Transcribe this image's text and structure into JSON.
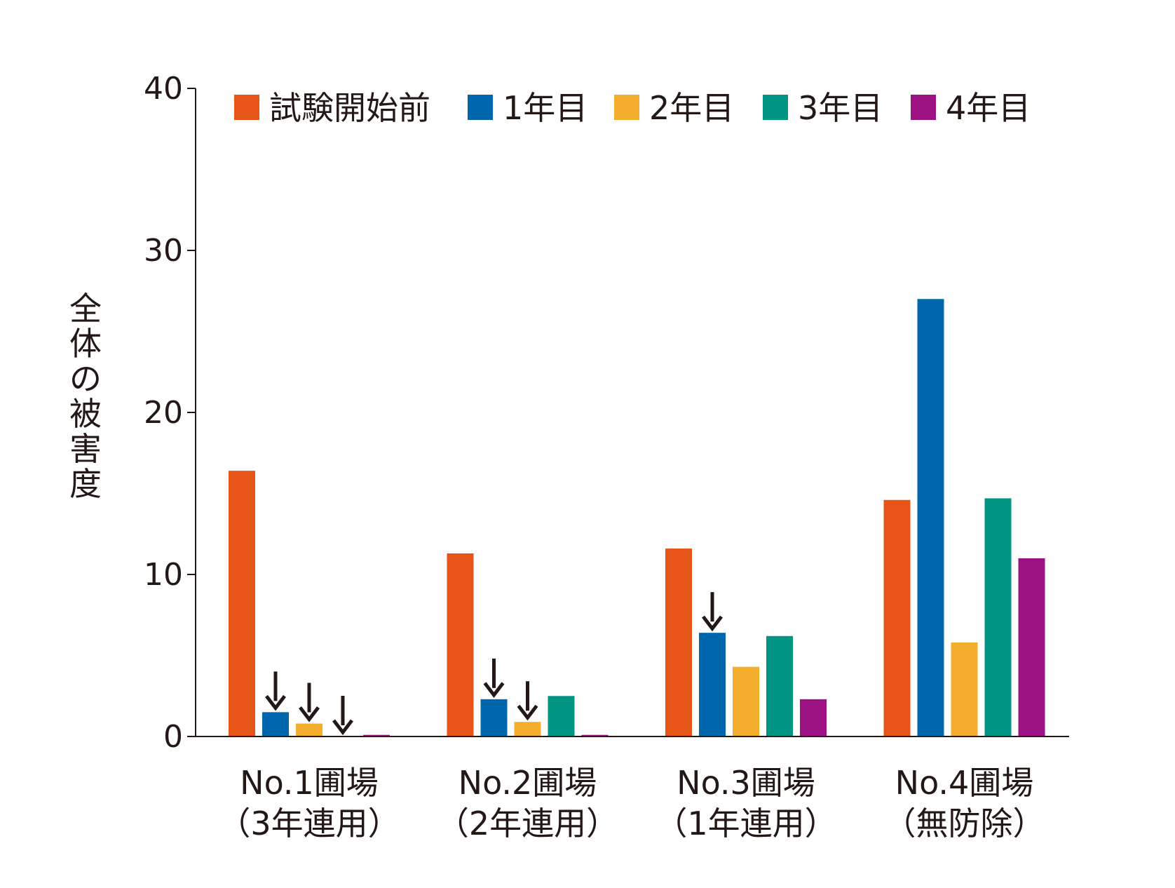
{
  "chart_data": {
    "type": "bar",
    "title": "",
    "xlabel": "",
    "ylabel": "全体の被害度",
    "ylim": [
      0,
      40
    ],
    "yticks": [
      0,
      10,
      20,
      30,
      40
    ],
    "legend_position": "top",
    "categories": [
      {
        "line1": "No.1圃場",
        "line2": "（3年連用）"
      },
      {
        "line1": "No.2圃場",
        "line2": "（2年連用）"
      },
      {
        "line1": "No.3圃場",
        "line2": "（1年連用）"
      },
      {
        "line1": "No.4圃場",
        "line2": "（無防除）"
      }
    ],
    "series": [
      {
        "name": "試験開始前",
        "color": "#E65418",
        "values": [
          16.4,
          11.3,
          11.6,
          14.6
        ]
      },
      {
        "name": "1年目",
        "color": "#0067AC",
        "values": [
          1.5,
          2.3,
          6.4,
          27.0
        ]
      },
      {
        "name": "2年目",
        "color": "#F3AE2D",
        "values": [
          0.8,
          0.9,
          4.3,
          5.8
        ]
      },
      {
        "name": "3年目",
        "color": "#009483",
        "values": [
          0.0,
          2.5,
          6.2,
          14.7
        ]
      },
      {
        "name": "4年目",
        "color": "#9C1283",
        "values": [
          0.1,
          0.1,
          2.3,
          11.0
        ]
      }
    ],
    "annotations": {
      "arrows": [
        {
          "category": 0,
          "series": 1
        },
        {
          "category": 0,
          "series": 2
        },
        {
          "category": 0,
          "series": 3
        },
        {
          "category": 1,
          "series": 1
        },
        {
          "category": 1,
          "series": 2
        },
        {
          "category": 2,
          "series": 1
        }
      ],
      "arrow_color": "#231815"
    },
    "grid": false
  }
}
